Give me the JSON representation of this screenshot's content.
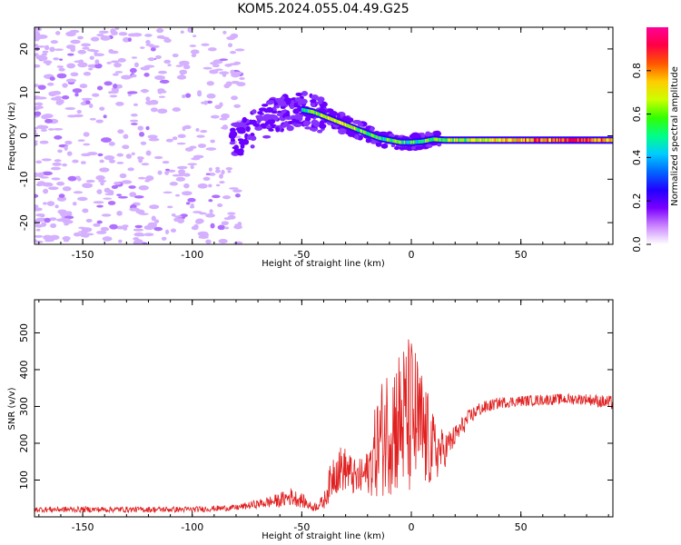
{
  "title": "KOM5.2024.055.04.49.G25",
  "chart_data": [
    {
      "type": "heatmap",
      "xlabel": "Height of straight line (km)",
      "ylabel": "Frequency (Hz)",
      "xlim": [
        -172,
        92
      ],
      "ylim": [
        -25,
        25
      ],
      "xticks": [
        -150,
        -100,
        -50,
        0,
        50
      ],
      "yticks": [
        -20,
        -10,
        0,
        10,
        20
      ],
      "colorbar": {
        "label": "Normalized spectral amplitude",
        "range": [
          0,
          1
        ],
        "ticks": [
          "0.0",
          "0.2",
          "0.4",
          "0.6",
          "0.8"
        ],
        "colormap": [
          "#ffffff",
          "#cc99ff",
          "#6600ff",
          "#0000ff",
          "#00c8ff",
          "#00ff66",
          "#99ff00",
          "#ffff00",
          "#ff9900",
          "#ff0033",
          "#ff0099"
        ]
      },
      "trace": {
        "x": [
          -82,
          -75,
          -70,
          -65,
          -60,
          -55,
          -50,
          -45,
          -40,
          -35,
          -30,
          -25,
          -20,
          -15,
          -10,
          -5,
          0,
          5,
          10,
          15,
          20,
          30,
          40,
          50,
          60,
          70,
          80,
          90
        ],
        "y": [
          -1.5,
          0.5,
          2.5,
          4,
          5,
          5.5,
          6,
          5.5,
          4.5,
          3.5,
          2.5,
          1.5,
          0.5,
          -0.5,
          -1,
          -1.5,
          -1.5,
          -1.3,
          -0.8,
          -1,
          -1,
          -1,
          -1,
          -1,
          -1,
          -1,
          -1,
          -1
        ],
        "amplitude": [
          0.3,
          0.35,
          0.35,
          0.35,
          0.3,
          0.3,
          0.35,
          0.5,
          0.55,
          0.6,
          0.6,
          0.55,
          0.5,
          0.45,
          0.45,
          0.45,
          0.45,
          0.45,
          0.5,
          0.55,
          0.55,
          0.6,
          0.65,
          0.7,
          0.75,
          0.8,
          0.8,
          0.7
        ]
      }
    },
    {
      "type": "line",
      "xlabel": "Height of straight line (km)",
      "ylabel": "SNR (v/v)",
      "xlim": [
        -172,
        92
      ],
      "ylim": [
        0,
        590
      ],
      "xticks": [
        -150,
        -100,
        -50,
        0,
        50
      ],
      "yticks": [
        100,
        200,
        300,
        400,
        500
      ],
      "color": "#e02020",
      "envelope": {
        "x": [
          -172,
          -100,
          -80,
          -70,
          -60,
          -55,
          -50,
          -45,
          -40,
          -35,
          -30,
          -25,
          -20,
          -15,
          -10,
          -5,
          0,
          5,
          10,
          15,
          20,
          25,
          30,
          40,
          50,
          60,
          70,
          80,
          90
        ],
        "mean": [
          20,
          20,
          25,
          35,
          45,
          55,
          45,
          25,
          40,
          130,
          130,
          100,
          120,
          200,
          250,
          260,
          270,
          230,
          180,
          180,
          220,
          260,
          290,
          310,
          315,
          318,
          320,
          320,
          310
        ],
        "spread": [
          8,
          8,
          8,
          12,
          20,
          25,
          20,
          10,
          20,
          70,
          60,
          50,
          60,
          150,
          190,
          210,
          230,
          170,
          100,
          50,
          30,
          25,
          20,
          15,
          15,
          15,
          15,
          15,
          20
        ]
      }
    }
  ]
}
